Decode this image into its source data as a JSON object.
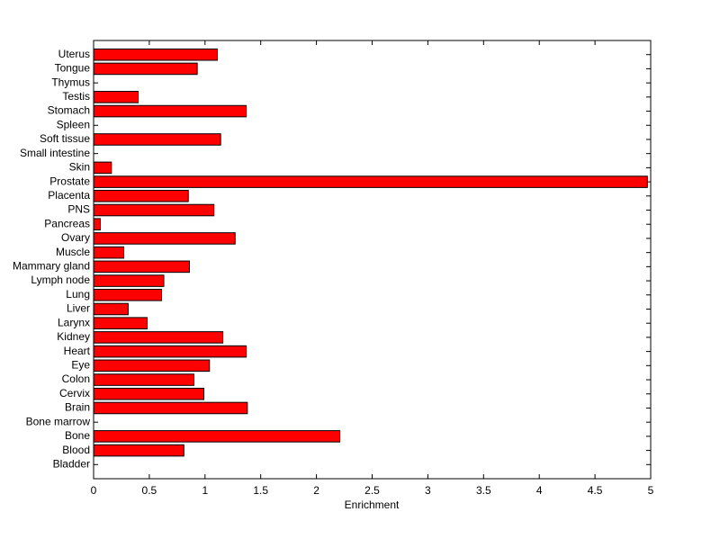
{
  "chart_data": {
    "type": "barh",
    "xlabel": "Enrichment",
    "categories": [
      "Bladder",
      "Blood",
      "Bone",
      "Bone marrow",
      "Brain",
      "Cervix",
      "Colon",
      "Eye",
      "Heart",
      "Kidney",
      "Larynx",
      "Liver",
      "Lung",
      "Lymph node",
      "Mammary gland",
      "Muscle",
      "Ovary",
      "Pancreas",
      "PNS",
      "Placenta",
      "Prostate",
      "Skin",
      "Small intestine",
      "Soft tissue",
      "Spleen",
      "Stomach",
      "Testis",
      "Thymus",
      "Tongue",
      "Uterus"
    ],
    "values": [
      0,
      0.81,
      2.21,
      0,
      1.38,
      0.99,
      0.9,
      1.04,
      1.37,
      1.16,
      0.48,
      0.31,
      0.61,
      0.63,
      0.86,
      0.27,
      1.27,
      0.06,
      1.08,
      0.85,
      4.97,
      0.16,
      0,
      1.14,
      0,
      1.37,
      0.4,
      0,
      0.93,
      1.11
    ],
    "color": "#ff0000",
    "xlim": [
      0,
      5
    ],
    "xticks": [
      0,
      0.5,
      1,
      1.5,
      2,
      2.5,
      3,
      3.5,
      4,
      4.5,
      5
    ]
  }
}
